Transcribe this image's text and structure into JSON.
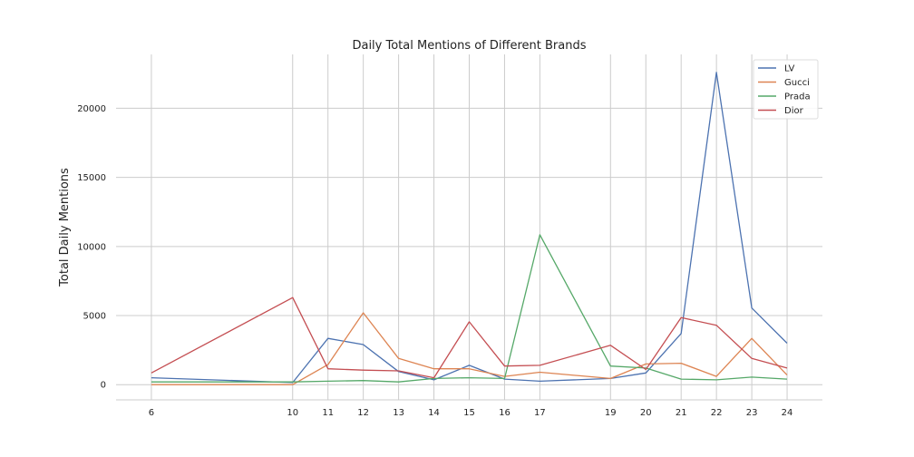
{
  "chart_data": {
    "type": "line",
    "title": "Daily Total Mentions of Different Brands",
    "xlabel": "",
    "ylabel": "Total Daily Mentions",
    "x": [
      6,
      10,
      11,
      12,
      13,
      14,
      15,
      16,
      17,
      19,
      20,
      21,
      22,
      23,
      24
    ],
    "xlim": [
      5,
      25
    ],
    "ylim": [
      -1100,
      23900
    ],
    "yticks": [
      0,
      5000,
      10000,
      15000,
      20000
    ],
    "grid": true,
    "legend_position": "top-right",
    "series": [
      {
        "name": "LV",
        "color": "#4c72b0",
        "values": [
          500,
          150,
          3350,
          2900,
          950,
          350,
          1400,
          400,
          250,
          450,
          850,
          3700,
          22600,
          5550,
          3000
        ]
      },
      {
        "name": "Gucci",
        "color": "#dd8452",
        "values": [
          0,
          0,
          1450,
          5200,
          1900,
          1150,
          1150,
          600,
          900,
          450,
          1500,
          1550,
          600,
          3350,
          700
        ]
      },
      {
        "name": "Prada",
        "color": "#55a868",
        "values": [
          200,
          200,
          250,
          300,
          200,
          450,
          500,
          450,
          10850,
          1350,
          1200,
          400,
          350,
          550,
          400
        ]
      },
      {
        "name": "Dior",
        "color": "#c44e52",
        "values": [
          850,
          6300,
          1150,
          1050,
          1000,
          500,
          4550,
          1350,
          1400,
          2850,
          1100,
          4850,
          4300,
          1900,
          1200
        ]
      }
    ]
  }
}
